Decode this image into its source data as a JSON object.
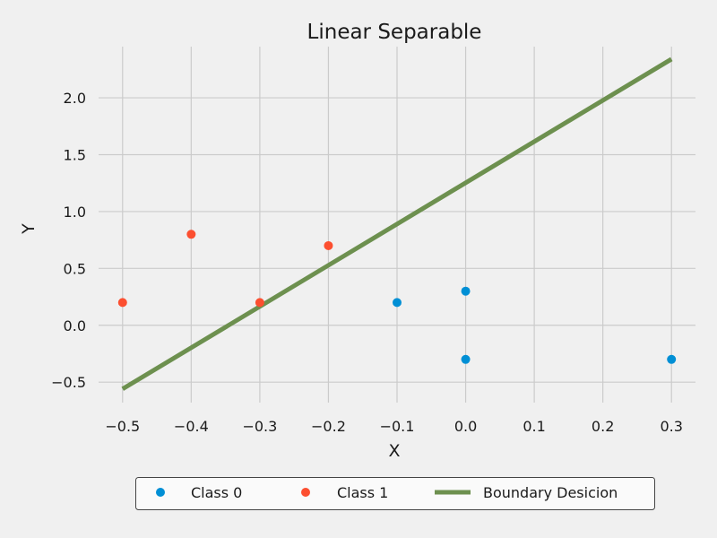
{
  "chart_data": {
    "type": "scatter",
    "title": "Linear Separable",
    "xlabel": "X",
    "ylabel": "Y",
    "xlim": [
      -0.535,
      0.335
    ],
    "ylim": [
      -0.68,
      2.45
    ],
    "xticks": [
      -0.5,
      -0.4,
      -0.3,
      -0.2,
      -0.1,
      0.0,
      0.1,
      0.2,
      0.3
    ],
    "xtick_labels": [
      "−0.5",
      "−0.4",
      "−0.3",
      "−0.2",
      "−0.1",
      "0.0",
      "0.1",
      "0.2",
      "0.3"
    ],
    "yticks": [
      -0.5,
      0.0,
      0.5,
      1.0,
      1.5,
      2.0
    ],
    "ytick_labels": [
      "−0.5",
      "0.0",
      "0.5",
      "1.0",
      "1.5",
      "2.0"
    ],
    "grid": true,
    "legend_position": "bottom-center",
    "series": [
      {
        "name": "Class 0",
        "kind": "points",
        "color": "#008fd5",
        "points": [
          [
            -0.1,
            0.2
          ],
          [
            0.0,
            0.3
          ],
          [
            0.0,
            -0.3
          ],
          [
            0.3,
            -0.3
          ]
        ]
      },
      {
        "name": "Class 1",
        "kind": "points",
        "color": "#fc4f30",
        "points": [
          [
            -0.5,
            0.2
          ],
          [
            -0.4,
            0.8
          ],
          [
            -0.3,
            0.2
          ],
          [
            -0.2,
            0.7
          ]
        ]
      },
      {
        "name": "Boundary Desicion",
        "kind": "line",
        "color": "#6d904f",
        "points": [
          [
            -0.5,
            -0.56
          ],
          [
            0.3,
            2.34
          ]
        ]
      }
    ]
  }
}
